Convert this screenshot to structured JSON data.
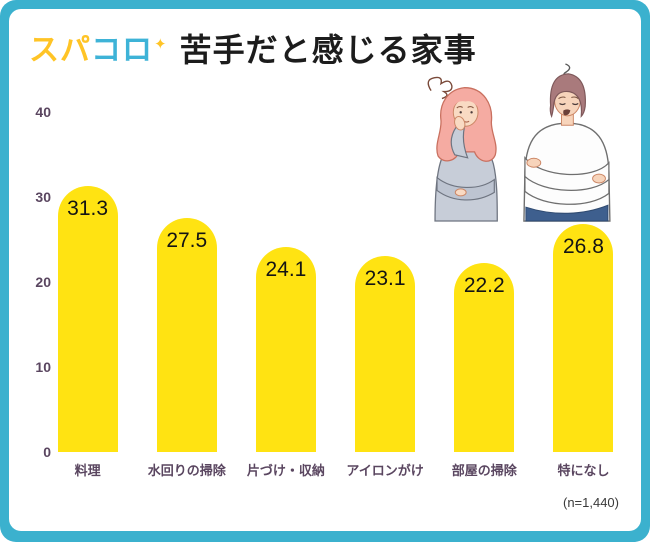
{
  "frame": {
    "border_color": "#3BB1CE",
    "background": "#FFFFFF"
  },
  "header": {
    "logo": {
      "text_primary": "スパ",
      "text_secondary": "コロ",
      "sparkle": "✦",
      "color_primary": "#FFC426",
      "color_secondary": "#3EB3D7"
    },
    "title": "苦手だと感じる家事"
  },
  "chart_data": {
    "type": "bar",
    "title": "苦手だと感じる家事",
    "categories": [
      "料理",
      "水回りの掃除",
      "片づけ・収納",
      "アイロンがけ",
      "部屋の掃除",
      "特になし"
    ],
    "values": [
      31.3,
      27.5,
      24.1,
      23.1,
      22.2,
      26.8
    ],
    "xlabel": "",
    "ylabel": "",
    "ylim": [
      0,
      40
    ],
    "yticks": [
      0,
      10,
      20,
      30,
      40
    ],
    "grid": false,
    "legend": "none",
    "bar_color": "#FFE312",
    "axis_label_color": "#5A4660",
    "value_label_color": "#141414"
  },
  "footnote": "(n=1,440)"
}
